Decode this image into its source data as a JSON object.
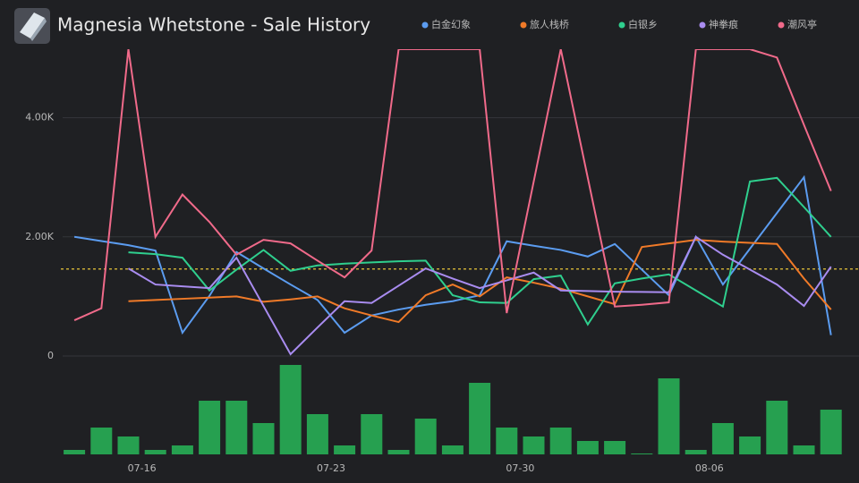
{
  "header": {
    "title": "Magnesia Whetstone - Sale History"
  },
  "chart_data": {
    "type": "line",
    "legend": "top",
    "grid": true,
    "categories": [
      null,
      null,
      null,
      "07-16",
      null,
      null,
      null,
      null,
      null,
      null,
      "07-23",
      null,
      null,
      null,
      null,
      null,
      null,
      "07-30",
      null,
      null,
      null,
      null,
      null,
      null,
      "08-06",
      null,
      null,
      null,
      null
    ],
    "ylim": [
      0,
      5150
    ],
    "yticks": [
      0,
      {
        "value": 2000,
        "label": "2.00K"
      },
      {
        "value": 4000,
        "label": "4.00K"
      }
    ],
    "reference_line": {
      "value": 1460,
      "color": "#e8c53a"
    },
    "series": [
      {
        "name": "白金幻象",
        "color": "#5b9cf0",
        "values": [
          2000,
          1930,
          1860,
          1770,
          390,
          1010,
          1745,
          1470,
          1200,
          940,
          390,
          680,
          780,
          860,
          920,
          1020,
          1925,
          1850,
          1780,
          1670,
          1880,
          1450,
          1020,
          2000,
          1200,
          1800,
          2400,
          3000,
          350
        ]
      },
      {
        "name": "旅人栈桥",
        "color": "#f07a28",
        "values": [
          null,
          null,
          920,
          940,
          960,
          980,
          1000,
          910,
          950,
          1000,
          800,
          680,
          570,
          1020,
          1200,
          1000,
          1320,
          1230,
          1130,
          1000,
          870,
          1830,
          1890,
          1950,
          1920,
          1900,
          1880,
          1300,
          780
        ]
      },
      {
        "name": "白银乡",
        "color": "#2fcf8e",
        "values": [
          null,
          null,
          1740,
          1710,
          1650,
          1100,
          1450,
          1780,
          1430,
          1520,
          1550,
          1570,
          1590,
          1600,
          1020,
          900,
          890,
          1290,
          1350,
          530,
          1220,
          1300,
          1370,
          1100,
          830,
          2930,
          2990,
          2500,
          2000
        ]
      },
      {
        "name": "神拳痕",
        "color": "#a98cf0",
        "values": [
          null,
          null,
          1470,
          1200,
          1170,
          1140,
          1650,
          840,
          30,
          480,
          920,
          890,
          1180,
          1470,
          1300,
          1140,
          1270,
          1400,
          1100,
          1090,
          1080,
          1075,
          1070,
          2000,
          1700,
          1450,
          1200,
          840,
          1500
        ]
      },
      {
        "name": "潮风亭",
        "color": "#f06a8a",
        "values": [
          600,
          800,
          5150,
          2000,
          2710,
          2250,
          1700,
          1950,
          1890,
          1600,
          1320,
          1770,
          5150,
          5150,
          5150,
          5150,
          720,
          2930,
          5150,
          2990,
          830,
          860,
          900,
          5150,
          5150,
          5150,
          5010,
          3880,
          2770
        ]
      }
    ],
    "volume": {
      "type": "bar",
      "color": "#26a050",
      "ylim": [
        0,
        20
      ],
      "values": [
        1,
        6,
        4,
        1,
        2,
        12,
        12,
        7,
        20,
        9,
        2,
        9,
        1,
        8,
        2,
        16,
        6,
        4,
        6,
        3,
        3,
        0.2,
        17,
        1,
        7,
        4,
        12,
        2,
        10
      ]
    }
  }
}
